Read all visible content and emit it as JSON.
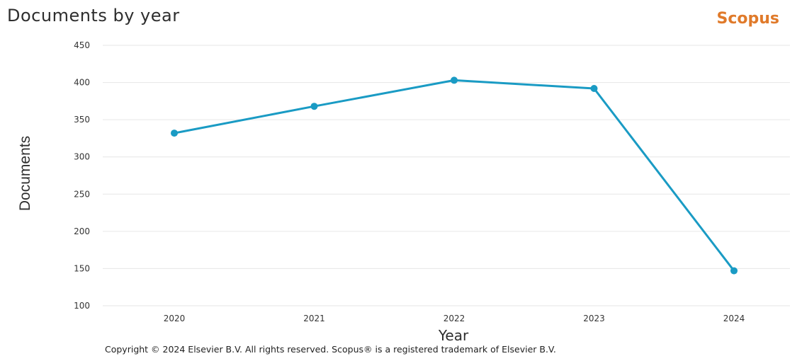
{
  "header": {
    "title": "Documents by year",
    "brand": "Scopus"
  },
  "footer": {
    "copyright": "Copyright © 2024 Elsevier B.V. All rights reserved. Scopus® is a registered trademark of Elsevier B.V."
  },
  "colors": {
    "line": "#1a9bc4",
    "grid": "#e6e6e6",
    "brand": "#e07a2a"
  },
  "chart_data": {
    "type": "line",
    "title": "Documents by year",
    "xlabel": "Year",
    "ylabel": "Documents",
    "categories": [
      "2020",
      "2021",
      "2022",
      "2023",
      "2024"
    ],
    "series": [
      {
        "values": [
          332,
          368,
          403,
          392,
          147
        ]
      }
    ],
    "ylim": [
      100,
      450
    ],
    "yticks": [
      100,
      150,
      200,
      250,
      300,
      350,
      400,
      450
    ],
    "grid": true,
    "legend": "none"
  }
}
